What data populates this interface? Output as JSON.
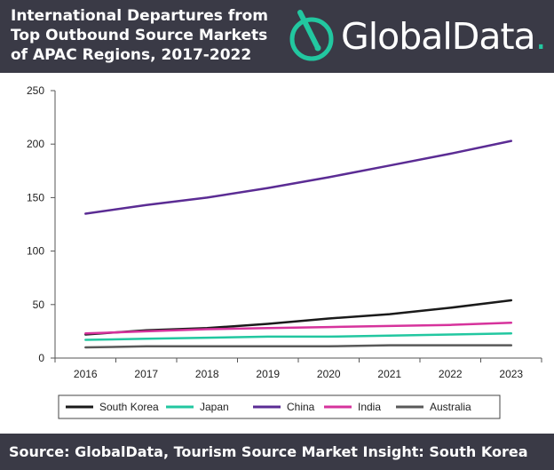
{
  "header": {
    "title_lines": [
      "International Departures from",
      "Top Outbound Source Markets",
      "of APAC Regions, 2017-2022"
    ],
    "brand": "GlobalData",
    "brand_dot": "."
  },
  "footer": {
    "source": "Source: GlobalData, Tourism Source Market Insight: South Korea"
  },
  "chart_data": {
    "type": "line",
    "title": "International Departures from Top Outbound Source Markets of APAC Regions, 2017-2022",
    "x": [
      "2016",
      "2017",
      "2018",
      "2019",
      "2020",
      "2021",
      "2022",
      "2023"
    ],
    "ylim": [
      0,
      250
    ],
    "yticks": [
      0,
      50,
      100,
      150,
      200,
      250
    ],
    "grid": false,
    "legend_position": "bottom",
    "series": [
      {
        "name": "South Korea",
        "color": "#1a1a1a",
        "values": [
          22,
          26,
          28,
          32,
          37,
          41,
          47,
          54
        ]
      },
      {
        "name": "Japan",
        "color": "#22c7a0",
        "values": [
          17,
          18,
          19,
          20,
          20,
          21,
          22,
          23
        ]
      },
      {
        "name": "China",
        "color": "#5b2c94",
        "values": [
          135,
          143,
          150,
          159,
          169,
          180,
          191,
          203
        ]
      },
      {
        "name": "India",
        "color": "#d6339c",
        "values": [
          23,
          25,
          27,
          28,
          29,
          30,
          31,
          33
        ]
      },
      {
        "name": "Australia",
        "color": "#595959",
        "values": [
          10,
          11,
          11,
          11,
          11,
          12,
          12,
          12
        ]
      }
    ]
  }
}
